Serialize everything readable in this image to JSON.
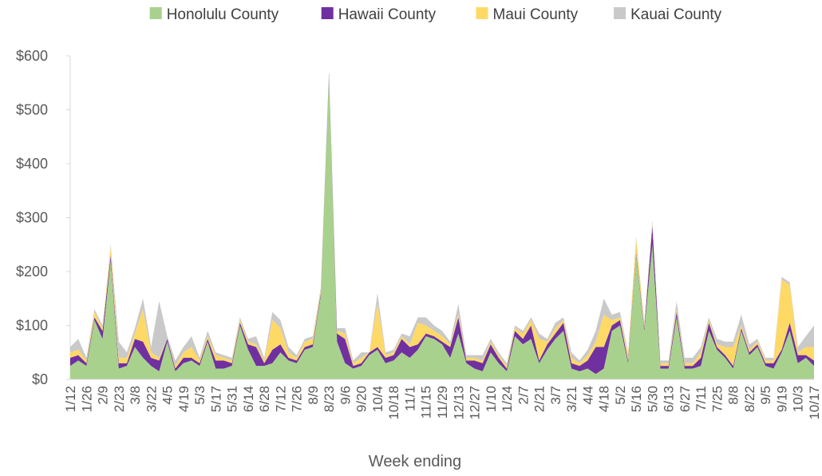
{
  "chart_data": {
    "type": "area",
    "stacked": true,
    "xlabel": "Week ending",
    "ylabel": "",
    "ylim": [
      0,
      600
    ],
    "yticks": [
      0,
      100,
      200,
      300,
      400,
      500,
      600
    ],
    "y_tick_labels": [
      "$0",
      "$100",
      "$200",
      "$300",
      "$400",
      "$500",
      "$600"
    ],
    "legend_position": "top",
    "grid": false,
    "categories": [
      "1/12",
      "1/19",
      "1/26",
      "2/2",
      "2/9",
      "2/16",
      "2/23",
      "3/1",
      "3/8",
      "3/15",
      "3/22",
      "3/29",
      "4/5",
      "4/12",
      "4/19",
      "4/26",
      "5/3",
      "5/10",
      "5/17",
      "5/24",
      "5/31",
      "6/7",
      "6/14",
      "6/21",
      "6/28",
      "7/5",
      "7/12",
      "7/19",
      "7/26",
      "8/2",
      "8/9",
      "8/16",
      "8/23",
      "8/30",
      "9/6",
      "9/13",
      "9/20",
      "9/27",
      "10/4",
      "10/11",
      "10/18",
      "10/25",
      "11/1",
      "11/8",
      "11/15",
      "11/22",
      "11/29",
      "12/6",
      "12/13",
      "12/20",
      "12/27",
      "1/3",
      "1/10",
      "1/17",
      "1/24",
      "1/31",
      "2/7",
      "2/14",
      "2/21",
      "2/28",
      "3/7",
      "3/14",
      "3/21",
      "3/28",
      "4/4",
      "4/11",
      "4/18",
      "4/25",
      "5/2",
      "5/9",
      "5/16",
      "5/23",
      "5/30",
      "6/6",
      "6/13",
      "6/20",
      "6/27",
      "7/4",
      "7/11",
      "7/18",
      "7/25",
      "8/1",
      "8/8",
      "8/15",
      "8/22",
      "8/29",
      "9/5",
      "9/12",
      "9/19",
      "9/26",
      "10/3",
      "10/10",
      "10/17"
    ],
    "visible_category_labels": [
      "1/12",
      "1/26",
      "2/9",
      "2/23",
      "3/8",
      "3/22",
      "4/5",
      "4/19",
      "5/3",
      "5/17",
      "5/31",
      "6/14",
      "6/28",
      "7/12",
      "7/26",
      "8/9",
      "8/23",
      "9/6",
      "9/20",
      "10/4",
      "10/18",
      "11/1",
      "11/15",
      "11/29",
      "12/13",
      "12/27",
      "1/10",
      "1/24",
      "2/7",
      "2/21",
      "3/7",
      "3/21",
      "4/4",
      "4/18",
      "5/2",
      "5/16",
      "5/30",
      "6/13",
      "6/27",
      "7/11",
      "7/25",
      "8/8",
      "8/22",
      "9/5",
      "9/19",
      "10/3",
      "10/17"
    ],
    "series": [
      {
        "name": "Honolulu County",
        "color": "#a9d18e",
        "values": [
          25,
          35,
          25,
          110,
          75,
          220,
          20,
          25,
          60,
          40,
          25,
          15,
          70,
          15,
          30,
          35,
          25,
          70,
          20,
          20,
          25,
          100,
          55,
          25,
          25,
          30,
          50,
          35,
          30,
          55,
          60,
          155,
          565,
          70,
          30,
          20,
          25,
          45,
          55,
          30,
          35,
          50,
          40,
          55,
          80,
          75,
          65,
          40,
          85,
          30,
          20,
          15,
          50,
          30,
          15,
          80,
          65,
          75,
          30,
          55,
          75,
          90,
          20,
          15,
          20,
          10,
          20,
          90,
          100,
          30,
          230,
          90,
          250,
          20,
          20,
          115,
          20,
          20,
          25,
          90,
          55,
          40,
          20,
          90,
          45,
          60,
          25,
          20,
          50,
          90,
          30,
          40,
          25
        ]
      },
      {
        "name": "Hawaii County",
        "color": "#7030a0",
        "values": [
          15,
          10,
          5,
          5,
          15,
          10,
          10,
          5,
          15,
          30,
          15,
          20,
          5,
          5,
          10,
          5,
          5,
          5,
          15,
          15,
          5,
          5,
          10,
          35,
          5,
          25,
          15,
          5,
          5,
          5,
          5,
          5,
          5,
          15,
          45,
          5,
          5,
          5,
          5,
          10,
          10,
          25,
          20,
          10,
          5,
          5,
          5,
          20,
          30,
          5,
          15,
          15,
          15,
          10,
          5,
          10,
          10,
          25,
          5,
          10,
          10,
          15,
          10,
          10,
          15,
          50,
          40,
          10,
          10,
          5,
          5,
          5,
          35,
          5,
          5,
          10,
          5,
          5,
          15,
          15,
          5,
          5,
          5,
          5,
          5,
          5,
          5,
          10,
          5,
          15,
          15,
          5,
          10
        ]
      },
      {
        "name": "Maui County",
        "color": "#ffd966",
        "values": [
          10,
          10,
          5,
          10,
          5,
          15,
          10,
          10,
          10,
          60,
          10,
          5,
          0,
          5,
          10,
          20,
          5,
          5,
          10,
          5,
          5,
          5,
          5,
          5,
          5,
          55,
          30,
          10,
          5,
          10,
          10,
          5,
          0,
          5,
          10,
          5,
          10,
          0,
          80,
          5,
          5,
          5,
          5,
          40,
          15,
          10,
          10,
          5,
          5,
          5,
          5,
          5,
          5,
          5,
          5,
          5,
          10,
          10,
          40,
          5,
          10,
          5,
          10,
          5,
          10,
          10,
          60,
          10,
          5,
          10,
          25,
          5,
          5,
          5,
          5,
          5,
          5,
          5,
          10,
          5,
          5,
          15,
          35,
          5,
          5,
          5,
          5,
          5,
          130,
          70,
          5,
          15,
          25
        ]
      },
      {
        "name": "Kauai County",
        "color": "#c9c9c9",
        "values": [
          10,
          20,
          5,
          5,
          5,
          5,
          30,
          10,
          10,
          20,
          10,
          105,
          5,
          10,
          10,
          20,
          5,
          10,
          5,
          5,
          5,
          5,
          5,
          15,
          5,
          15,
          15,
          10,
          5,
          5,
          5,
          5,
          0,
          5,
          10,
          5,
          10,
          0,
          20,
          5,
          5,
          5,
          15,
          10,
          15,
          10,
          10,
          5,
          20,
          5,
          5,
          10,
          5,
          5,
          5,
          5,
          5,
          5,
          10,
          5,
          10,
          5,
          10,
          5,
          10,
          20,
          30,
          10,
          10,
          5,
          5,
          5,
          5,
          5,
          5,
          15,
          10,
          10,
          10,
          5,
          10,
          10,
          10,
          20,
          10,
          5,
          5,
          5,
          5,
          5,
          10,
          20,
          40
        ]
      }
    ]
  }
}
